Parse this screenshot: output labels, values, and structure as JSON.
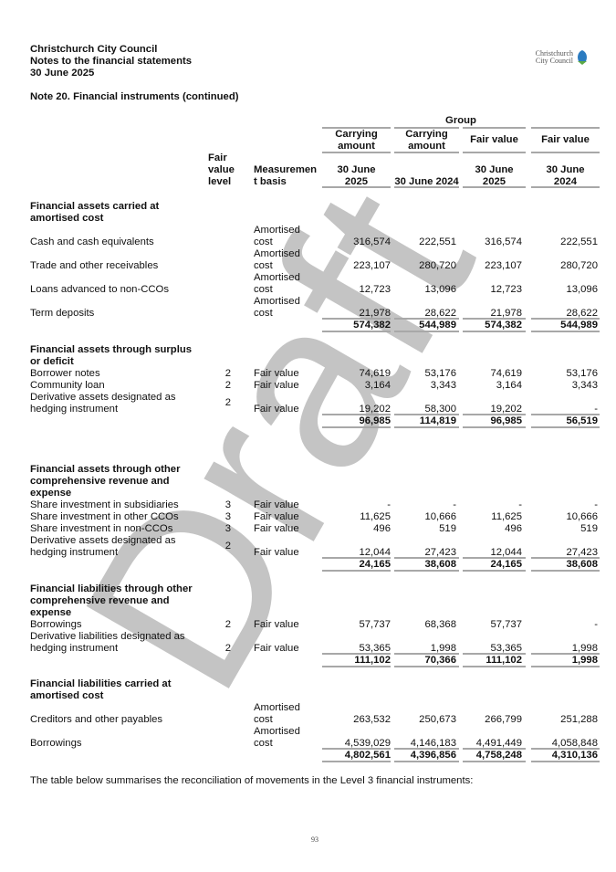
{
  "header": {
    "org": "Christchurch City Council",
    "subtitle": "Notes to the financial statements",
    "date": "30 June 2025",
    "logo_text": [
      "Christchurch",
      "City Council"
    ]
  },
  "note_title": "Note 20. Financial instruments (continued)",
  "watermark": "Draft",
  "table": {
    "group_label": "Group",
    "col_level": [
      "Fair",
      "value",
      "level"
    ],
    "col_basis": [
      "Measuremen",
      "t basis"
    ],
    "columns": [
      {
        "type": [
          "Carrying",
          "amount"
        ],
        "date": [
          "30 June",
          "2025"
        ]
      },
      {
        "type": [
          "Carrying",
          "amount"
        ],
        "date": [
          "30 June 2024"
        ]
      },
      {
        "type": [
          "Fair value"
        ],
        "date": [
          "30 June",
          "2025"
        ]
      },
      {
        "type": [
          "Fair value"
        ],
        "date": [
          "30 June",
          "2024"
        ]
      }
    ],
    "sections": [
      {
        "title": [
          "Financial assets carried at",
          "amortised cost"
        ],
        "rows": [
          {
            "label": [
              "Cash and cash equivalents"
            ],
            "level": "",
            "basis": [
              "Amortised",
              "cost"
            ],
            "values": [
              "316,574",
              "222,551",
              "316,574",
              "222,551"
            ]
          },
          {
            "label": [
              "Trade and other receivables"
            ],
            "level": "",
            "basis": [
              "Amortised",
              "cost"
            ],
            "values": [
              "223,107",
              "280,720",
              "223,107",
              "280,720"
            ]
          },
          {
            "label": [
              "Loans advanced to non-CCOs"
            ],
            "level": "",
            "basis": [
              "Amortised",
              "cost"
            ],
            "values": [
              "12,723",
              "13,096",
              "12,723",
              "13,096"
            ]
          },
          {
            "label": [
              "Term deposits"
            ],
            "level": "",
            "basis": [
              "Amortised",
              "cost"
            ],
            "values": [
              "21,978",
              "28,622",
              "21,978",
              "28,622"
            ]
          }
        ],
        "total": [
          "574,382",
          "544,989",
          "574,382",
          "544,989"
        ]
      },
      {
        "title": [
          "Financial assets through surplus",
          "or deficit"
        ],
        "rows": [
          {
            "label": [
              "Borrower notes"
            ],
            "level": "2",
            "basis": [
              "Fair value"
            ],
            "values": [
              "74,619",
              "53,176",
              "74,619",
              "53,176"
            ]
          },
          {
            "label": [
              "Community loan"
            ],
            "level": "2",
            "basis": [
              "Fair value"
            ],
            "values": [
              "3,164",
              "3,343",
              "3,164",
              "3,343"
            ]
          },
          {
            "label": [
              "Derivative assets designated as",
              "hedging instrument"
            ],
            "level": "2",
            "basis": [
              "Fair value"
            ],
            "values": [
              "19,202",
              "58,300",
              "19,202",
              "-"
            ]
          }
        ],
        "total": [
          "96,985",
          "114,819",
          "96,985",
          "56,519"
        ]
      },
      {
        "title": [
          "Financial assets through other",
          "comprehensive revenue and",
          "expense"
        ],
        "rows": [
          {
            "label": [
              "Share investment in subsidiaries"
            ],
            "level": "3",
            "basis": [
              "Fair value"
            ],
            "values": [
              "-",
              "-",
              "-",
              "-"
            ]
          },
          {
            "label": [
              "Share investment in other CCOs"
            ],
            "level": "3",
            "basis": [
              "Fair value"
            ],
            "values": [
              "11,625",
              "10,666",
              "11,625",
              "10,666"
            ]
          },
          {
            "label": [
              "Share investment in non-CCOs"
            ],
            "level": "3",
            "basis": [
              "Fair value"
            ],
            "values": [
              "496",
              "519",
              "496",
              "519"
            ]
          },
          {
            "label": [
              "Derivative assets designated as",
              "hedging instrument"
            ],
            "level": "2",
            "basis": [
              "Fair value"
            ],
            "values": [
              "12,044",
              "27,423",
              "12,044",
              "27,423"
            ]
          }
        ],
        "total": [
          "24,165",
          "38,608",
          "24,165",
          "38,608"
        ]
      },
      {
        "title": [
          "Financial liabilities through other",
          "comprehensive revenue and",
          "expense"
        ],
        "rows": [
          {
            "label": [
              "Borrowings"
            ],
            "level": "2",
            "basis": [
              "Fair value"
            ],
            "values": [
              "57,737",
              "68,368",
              "57,737",
              "-"
            ]
          },
          {
            "label": [
              "Derivative liabilities designated as",
              "hedging instrument"
            ],
            "level": "2",
            "basis": [
              "Fair value"
            ],
            "values": [
              "53,365",
              "1,998",
              "53,365",
              "1,998"
            ]
          }
        ],
        "total": [
          "111,102",
          "70,366",
          "111,102",
          "1,998"
        ]
      },
      {
        "title": [
          "Financial liabilities carried at",
          "amortised cost"
        ],
        "rows": [
          {
            "label": [
              "Creditors and other payables"
            ],
            "level": "",
            "basis": [
              "Amortised",
              "cost"
            ],
            "values": [
              "263,532",
              "250,673",
              "266,799",
              "251,288"
            ]
          },
          {
            "label": [
              "Borrowings"
            ],
            "level": "",
            "basis": [
              "Amortised",
              "cost"
            ],
            "values": [
              "4,539,029",
              "4,146,183",
              "4,491,449",
              "4,058,848"
            ]
          }
        ],
        "total": [
          "4,802,561",
          "4,396,856",
          "4,758,248",
          "4,310,136"
        ]
      }
    ]
  },
  "footer_text": "The table below summarises the reconciliation of movements in the Level 3 financial instruments:",
  "page_number": "93",
  "colors": {
    "watermark": "#c4c4c4",
    "rule": "#a8a8a8",
    "logo_blue": "#2b7bc0",
    "logo_green": "#5aa846"
  }
}
